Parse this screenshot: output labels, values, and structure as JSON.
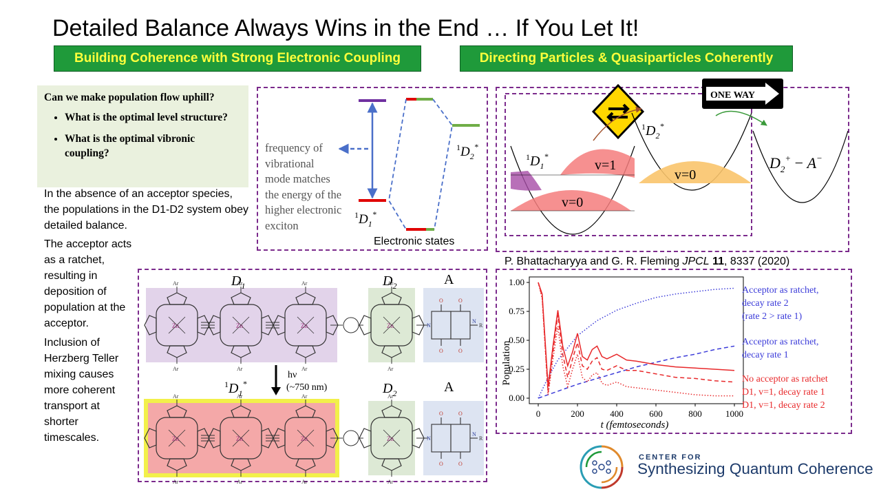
{
  "title": "Detailed Balance Always Wins in the End … If You Let It!",
  "banners": {
    "left": "Building Coherence with Strong Electronic Coupling",
    "right": "Directing Particles & Quasiparticles Coherently"
  },
  "questions": {
    "heading": "Can we make population flow uphill?",
    "items": [
      "What is the optimal level structure?",
      "What is the optimal vibronic coupling?"
    ]
  },
  "paragraphs": {
    "p1": "In the absence of an acceptor species, the populations in the D1-D2 system obey  detailed balance.",
    "p2": "The acceptor acts as a ratchet, resulting in deposition of population at the acceptor.",
    "p3": "Inclusion of Herzberg Teller mixing causes more coherent transport at shorter timescales."
  },
  "energy_diagram": {
    "description": "frequency of vibrational mode matches the energy of the higher electronic exciton",
    "d1_label": "1D1*",
    "d2_label": "1D2*",
    "caption": "Electronic states"
  },
  "potentials": {
    "sign_text": "ONE  WAY",
    "d1_label": "1D1*",
    "d2_label": "1D2*",
    "ct_label": "D2+ − A−",
    "v1": "v=1",
    "v0_left": "v=0",
    "v0_right": "v=0"
  },
  "citation": {
    "authors": "P. Bhattacharyya and G. R. Fleming ",
    "journal": "JPCL",
    "volume": "11",
    "pages": ", 8337 (2020)"
  },
  "molecule": {
    "top_d1": "D1",
    "top_d2": "D2",
    "top_a": "A",
    "bottom_d1": "1D1*",
    "bottom_d2": "D2",
    "bottom_a": "A",
    "hv": "hν",
    "wavelength": "(~750 nm)",
    "ar": "Ar",
    "zn": "Zn",
    "n": "N",
    "o": "O",
    "r": "R"
  },
  "chart_data": {
    "type": "line",
    "xlabel": "t (femtoseconds)",
    "ylabel": "Population",
    "xlim": [
      0,
      1000
    ],
    "ylim": [
      0,
      1.0
    ],
    "xticks": [
      0,
      200,
      400,
      600,
      800,
      1000
    ],
    "yticks": [
      0.0,
      0.25,
      0.5,
      0.75,
      1.0
    ],
    "ytick_labels": [
      "0.00",
      "0.25",
      "0.50",
      "0.75",
      "1.00"
    ],
    "series": [
      {
        "name": "Acceptor as ratchet, decay rate 2",
        "color": "#3b3bd9",
        "style": "dotted",
        "x": [
          0,
          50,
          100,
          200,
          300,
          400,
          500,
          600,
          700,
          800,
          900,
          1000
        ],
        "y": [
          0.0,
          0.18,
          0.33,
          0.54,
          0.67,
          0.76,
          0.82,
          0.87,
          0.9,
          0.92,
          0.94,
          0.95
        ]
      },
      {
        "name": "Acceptor as ratchet, decay rate 1",
        "color": "#3b3bd9",
        "style": "dashed",
        "x": [
          0,
          100,
          200,
          300,
          400,
          500,
          600,
          700,
          800,
          900,
          1000
        ],
        "y": [
          0.0,
          0.06,
          0.12,
          0.17,
          0.22,
          0.27,
          0.31,
          0.35,
          0.38,
          0.42,
          0.45
        ]
      },
      {
        "name": "No acceptor as ratchet",
        "color": "#e8282a",
        "style": "solid",
        "x": [
          0,
          20,
          50,
          75,
          100,
          125,
          150,
          175,
          200,
          225,
          250,
          275,
          300,
          325,
          350,
          400,
          450,
          500,
          600,
          700,
          800,
          900,
          1000
        ],
        "y": [
          1.0,
          0.9,
          0.1,
          0.45,
          0.76,
          0.45,
          0.28,
          0.4,
          0.56,
          0.36,
          0.33,
          0.42,
          0.45,
          0.36,
          0.34,
          0.38,
          0.33,
          0.32,
          0.29,
          0.27,
          0.26,
          0.25,
          0.24
        ]
      },
      {
        "name": "D1, v=1, decay rate 1",
        "color": "#e8282a",
        "style": "dashed",
        "x": [
          0,
          20,
          50,
          75,
          100,
          125,
          150,
          175,
          200,
          225,
          250,
          275,
          300,
          325,
          350,
          400,
          450,
          500,
          600,
          700,
          800,
          900,
          1000
        ],
        "y": [
          1.0,
          0.88,
          0.05,
          0.4,
          0.72,
          0.38,
          0.18,
          0.34,
          0.48,
          0.28,
          0.25,
          0.32,
          0.35,
          0.25,
          0.24,
          0.28,
          0.24,
          0.24,
          0.21,
          0.18,
          0.17,
          0.15,
          0.14
        ]
      },
      {
        "name": "D1, v=1, decay rate 2",
        "color": "#e8282a",
        "style": "dotted",
        "x": [
          0,
          20,
          50,
          75,
          100,
          125,
          150,
          175,
          200,
          225,
          250,
          275,
          300,
          325,
          350,
          400,
          450,
          500,
          600,
          700,
          800,
          900,
          1000
        ],
        "y": [
          1.0,
          0.86,
          0.03,
          0.34,
          0.62,
          0.28,
          0.1,
          0.25,
          0.38,
          0.18,
          0.14,
          0.2,
          0.22,
          0.13,
          0.11,
          0.14,
          0.1,
          0.09,
          0.07,
          0.05,
          0.03,
          0.02,
          0.02
        ]
      }
    ],
    "legend": [
      {
        "line1": "Acceptor as ratchet,",
        "line2": "decay rate 2",
        "line3": "(rate 2 > rate 1)",
        "color": "#3b3bd9"
      },
      {
        "line1": "Acceptor as ratchet,",
        "line2": "decay rate 1",
        "color": "#3b3bd9"
      },
      {
        "line1": "No acceptor as ratchet",
        "color": "#e8282a"
      },
      {
        "line1": "D1, v=1, decay rate 1",
        "color": "#e8282a"
      },
      {
        "line1": "D1, v=1, decay rate 2",
        "color": "#e8282a"
      }
    ]
  },
  "logo": {
    "line1": "CENTER FOR",
    "line2": "Synthesizing Quantum Coherence"
  },
  "colors": {
    "banner_green": "#1f9a3a",
    "banner_text": "#ffff3c",
    "frame_purple": "#7b2a8c",
    "question_bg": "#eaf1de"
  }
}
